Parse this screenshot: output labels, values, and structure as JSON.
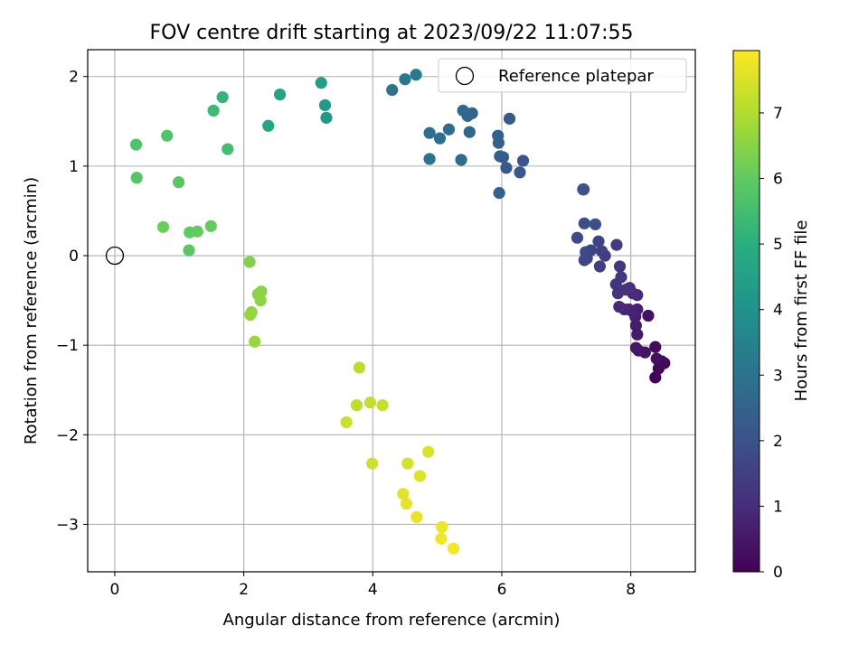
{
  "chart_data": {
    "type": "scatter",
    "title": "FOV centre drift starting at 2023/09/22 11:07:55",
    "xlabel": "Angular distance from reference (arcmin)",
    "ylabel": "Rotation from reference (arcmin)",
    "xlim": [
      -0.42,
      9.0
    ],
    "ylim": [
      -3.53,
      2.3
    ],
    "xticks": [
      0,
      2,
      4,
      6,
      8
    ],
    "yticks": [
      -3,
      -2,
      -1,
      0,
      1,
      2
    ],
    "xtick_labels": [
      "0",
      "2",
      "4",
      "6",
      "8"
    ],
    "ytick_labels": [
      "−3",
      "−2",
      "−1",
      "0",
      "1",
      "2"
    ],
    "grid": true,
    "legend": {
      "location": "top-right",
      "entries": [
        "Reference platepar"
      ]
    },
    "reference": {
      "x": 0,
      "y": 0
    },
    "colorbar": {
      "label": "Hours from first FF file",
      "colormap": "viridis",
      "range": [
        0,
        7.95
      ],
      "ticks": [
        0,
        1,
        2,
        3,
        4,
        5,
        6,
        7
      ],
      "tick_labels": [
        "0",
        "1",
        "2",
        "3",
        "4",
        "5",
        "6",
        "7"
      ]
    },
    "series": [
      {
        "values": [
          [
            8.52,
            -1.2,
            0.05
          ],
          [
            8.38,
            -1.36,
            0.1
          ],
          [
            8.43,
            -1.26,
            0.15
          ],
          [
            8.48,
            -1.18,
            0.2
          ],
          [
            8.38,
            -1.02,
            0.25
          ],
          [
            8.4,
            -1.15,
            0.3
          ],
          [
            8.27,
            -0.67,
            0.35
          ],
          [
            8.22,
            -1.08,
            0.4
          ],
          [
            8.12,
            -1.06,
            0.45
          ],
          [
            8.08,
            -1.03,
            0.5
          ],
          [
            8.1,
            -0.88,
            0.55
          ],
          [
            8.08,
            -0.78,
            0.6
          ],
          [
            8.07,
            -0.68,
            0.65
          ],
          [
            8.1,
            -0.6,
            0.7
          ],
          [
            8.02,
            -0.62,
            0.75
          ],
          [
            7.97,
            -0.6,
            0.8
          ],
          [
            7.9,
            -0.6,
            0.85
          ],
          [
            7.82,
            -0.57,
            0.9
          ],
          [
            8.1,
            -0.44,
            0.95
          ],
          [
            8.03,
            -0.42,
            1.0
          ],
          [
            7.98,
            -0.36,
            1.05
          ],
          [
            7.92,
            -0.38,
            1.1
          ],
          [
            7.8,
            -0.42,
            1.15
          ],
          [
            7.77,
            -0.32,
            1.2
          ],
          [
            7.85,
            -0.24,
            1.25
          ],
          [
            7.83,
            -0.12,
            1.3
          ],
          [
            7.78,
            0.12,
            1.35
          ],
          [
            7.6,
            0.0,
            1.4
          ],
          [
            7.52,
            -0.12,
            1.45
          ],
          [
            7.55,
            0.05,
            1.5
          ],
          [
            7.5,
            0.16,
            1.55
          ],
          [
            7.38,
            0.06,
            1.6
          ],
          [
            7.32,
            -0.03,
            1.65
          ],
          [
            7.28,
            -0.05,
            1.7
          ],
          [
            7.3,
            0.04,
            1.75
          ],
          [
            7.17,
            0.2,
            1.8
          ],
          [
            7.28,
            0.36,
            1.85
          ],
          [
            7.45,
            0.35,
            1.9
          ],
          [
            7.26,
            0.74,
            1.95
          ],
          [
            7.27,
            0.74,
            2.0
          ],
          [
            6.33,
            1.06,
            2.1
          ],
          [
            6.28,
            0.93,
            2.15
          ],
          [
            6.12,
            1.53,
            2.2
          ],
          [
            6.07,
            0.98,
            2.25
          ],
          [
            6.02,
            1.1,
            2.3
          ],
          [
            5.97,
            1.11,
            2.35
          ],
          [
            5.95,
            1.26,
            2.4
          ],
          [
            5.94,
            1.34,
            2.45
          ],
          [
            5.96,
            0.7,
            2.5
          ],
          [
            5.54,
            1.59,
            2.55
          ],
          [
            5.5,
            1.38,
            2.6
          ],
          [
            5.47,
            1.56,
            2.65
          ],
          [
            5.4,
            1.62,
            2.7
          ],
          [
            5.37,
            1.07,
            2.75
          ],
          [
            5.18,
            1.41,
            2.8
          ],
          [
            5.04,
            1.31,
            2.85
          ],
          [
            4.88,
            1.37,
            2.9
          ],
          [
            4.88,
            1.08,
            2.95
          ],
          [
            4.3,
            1.85,
            3.05
          ],
          [
            4.5,
            1.97,
            3.15
          ],
          [
            4.67,
            2.02,
            3.25
          ],
          [
            3.28,
            1.54,
            4.2
          ],
          [
            3.26,
            1.68,
            4.3
          ],
          [
            3.2,
            1.93,
            4.4
          ],
          [
            2.56,
            1.8,
            4.6
          ],
          [
            2.38,
            1.45,
            4.7
          ],
          [
            1.67,
            1.77,
            5.2
          ],
          [
            1.53,
            1.62,
            5.4
          ],
          [
            1.75,
            1.19,
            5.5
          ],
          [
            0.33,
            1.24,
            5.7
          ],
          [
            0.81,
            1.34,
            5.75
          ],
          [
            0.34,
            0.87,
            5.8
          ],
          [
            0.99,
            0.82,
            5.85
          ],
          [
            1.15,
            0.06,
            5.9
          ],
          [
            1.16,
            0.26,
            5.95
          ],
          [
            1.28,
            0.27,
            6.0
          ],
          [
            1.49,
            0.33,
            6.05
          ],
          [
            0.75,
            0.32,
            6.1
          ],
          [
            2.09,
            -0.07,
            6.4
          ],
          [
            2.22,
            -0.43,
            6.45
          ],
          [
            2.27,
            -0.4,
            6.5
          ],
          [
            2.26,
            -0.5,
            6.55
          ],
          [
            2.12,
            -0.63,
            6.6
          ],
          [
            2.1,
            -0.66,
            6.65
          ],
          [
            2.17,
            -0.96,
            6.7
          ],
          [
            3.79,
            -1.25,
            7.1
          ],
          [
            3.75,
            -1.67,
            7.15
          ],
          [
            3.96,
            -1.64,
            7.2
          ],
          [
            4.15,
            -1.67,
            7.25
          ],
          [
            3.59,
            -1.86,
            7.3
          ],
          [
            3.99,
            -2.32,
            7.35
          ],
          [
            4.54,
            -2.32,
            7.45
          ],
          [
            4.86,
            -2.19,
            7.5
          ],
          [
            4.73,
            -2.46,
            7.55
          ],
          [
            4.47,
            -2.66,
            7.6
          ],
          [
            4.52,
            -2.77,
            7.65
          ],
          [
            4.68,
            -2.92,
            7.7
          ],
          [
            5.07,
            -3.03,
            7.75
          ],
          [
            5.06,
            -3.16,
            7.8
          ],
          [
            5.25,
            -3.27,
            7.85
          ]
        ]
      }
    ]
  }
}
